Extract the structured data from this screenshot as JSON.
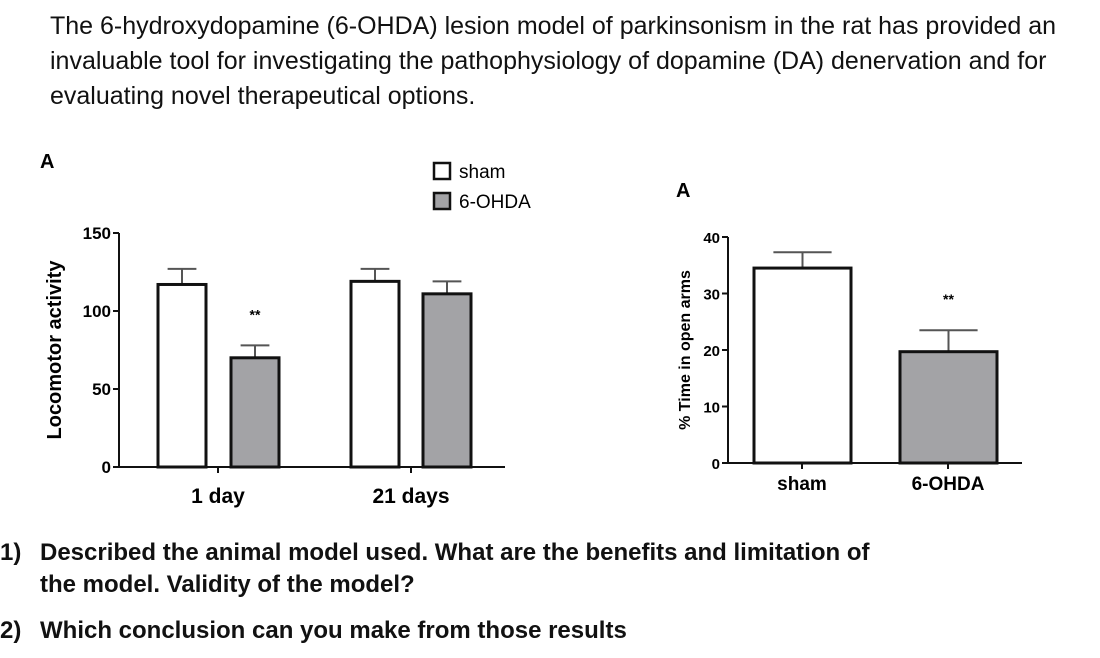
{
  "intro_text": "The 6-hydroxydopamine (6-OHDA) lesion model of parkinsonism in the rat has provided an invaluable tool for investigating the pathophysiology of dopamine (DA) denervation and for evaluating novel therapeutical options.",
  "questions": [
    {
      "number": "1)",
      "lines": [
        "Described the animal model used. What are the benefits and limitation of",
        "the model. Validity of the model?"
      ]
    },
    {
      "number": "2)",
      "lines": [
        "Which conclusion can you make from those results"
      ]
    }
  ],
  "colors": {
    "sham": "#ffffff",
    "6-OHDA": "#a3a3a6",
    "outline": "#111111"
  },
  "chart_data": [
    {
      "type": "bar",
      "panel_label": "A",
      "categories": [
        "1 day",
        "21 days"
      ],
      "series": [
        {
          "name": "sham",
          "values": [
            117,
            119
          ],
          "error": [
            10,
            8
          ]
        },
        {
          "name": "6-OHDA",
          "values": [
            70,
            111
          ],
          "error": [
            8,
            8
          ]
        }
      ],
      "significance": [
        "**",
        ""
      ],
      "ylabel": "Locomotor activity",
      "xlabel": "",
      "ylim": [
        0,
        150
      ],
      "yticks": [
        "0",
        "50",
        "100",
        "150"
      ],
      "legend": {
        "placement": "top-right",
        "entries": [
          "sham",
          "6-OHDA"
        ]
      },
      "grid": false
    },
    {
      "type": "bar",
      "panel_label": "A",
      "categories": [
        "sham",
        "6-OHDA"
      ],
      "values": [
        34.5,
        19.7
      ],
      "error": [
        2.8,
        3.8
      ],
      "significance": [
        "",
        "**"
      ],
      "ylabel": "% Time in open arms",
      "xlabel": "",
      "ylim": [
        0,
        40
      ],
      "yticks": [
        "0",
        "10",
        "20",
        "30",
        "40"
      ],
      "grid": false
    }
  ]
}
